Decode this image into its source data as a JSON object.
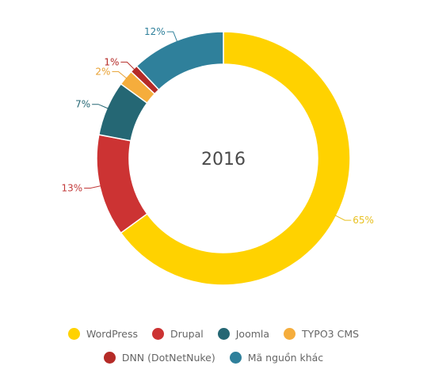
{
  "chart_data": {
    "type": "pie",
    "style": "donut",
    "center_label": "2016",
    "start_at": "top",
    "direction": "clockwise",
    "slices": [
      {
        "name": "WordPress",
        "value": 65,
        "label": "65%",
        "color": "#FFD200",
        "label_color": "#E8C020"
      },
      {
        "name": "Drupal",
        "value": 13,
        "label": "13%",
        "color": "#CC3333",
        "label_color": "#C23A3A"
      },
      {
        "name": "Joomla",
        "value": 7,
        "label": "7%",
        "color": "#256774",
        "label_color": "#256774"
      },
      {
        "name": "TYPO3 CMS",
        "value": 2,
        "label": "2%",
        "color": "#F5AD3C",
        "label_color": "#E8A030"
      },
      {
        "name": "DNN (DotNetNuke)",
        "value": 1,
        "label": "1%",
        "color": "#B52B27",
        "label_color": "#B52B27"
      },
      {
        "name": "Mã nguồn khác",
        "value": 12,
        "label": "12%",
        "color": "#2F809B",
        "label_color": "#2F809B"
      }
    ],
    "legend": {
      "placement": "bottom",
      "rows": [
        [
          "WordPress",
          "Drupal",
          "Joomla",
          "TYPO3 CMS"
        ],
        [
          "DNN (DotNetNuke)",
          "Mã nguồn khác"
        ]
      ]
    }
  }
}
